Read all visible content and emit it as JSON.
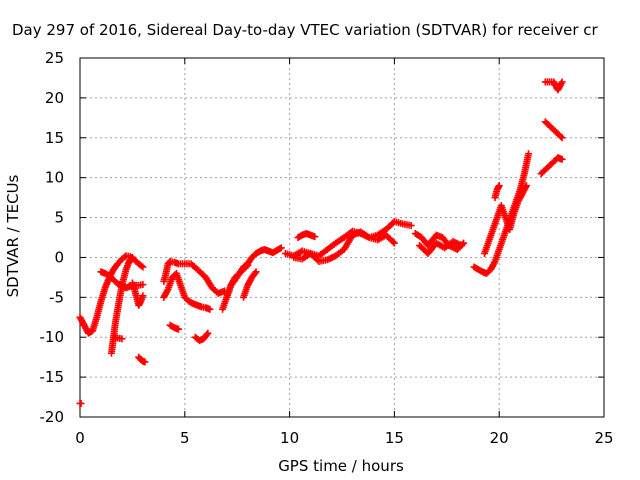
{
  "chart_data": {
    "type": "scatter",
    "title": "Day 297 of 2016, Sidereal Day-to-day VTEC variation (SDTVAR) for receiver cr",
    "xlabel": "GPS time / hours",
    "ylabel": "SDTVAR / TECUs",
    "xlim": [
      0,
      25
    ],
    "ylim": [
      -20,
      25
    ],
    "xticks": [
      0,
      5,
      10,
      15,
      20,
      25
    ],
    "yticks": [
      -20,
      -15,
      -10,
      -5,
      0,
      5,
      10,
      15,
      20,
      25
    ],
    "xtick_labels": [
      "0",
      "5",
      "10",
      "15",
      "20",
      "25"
    ],
    "ytick_labels": [
      "-20",
      "-15",
      "-10",
      "-5",
      "0",
      "5",
      "10",
      "15",
      "20",
      "25"
    ],
    "grid": true,
    "marker": "+",
    "color": "#ff0000",
    "segments": [
      {
        "x": [
          0,
          0.05
        ],
        "y": [
          -18.3,
          -18.3
        ]
      },
      {
        "x": [
          0,
          0.2,
          0.4,
          0.6,
          0.8,
          1.0,
          1.2,
          1.4,
          1.6,
          1.8,
          2.0,
          2.2,
          2.4,
          2.6,
          2.8,
          3.0
        ],
        "y": [
          -7.5,
          -8.5,
          -9.5,
          -9.2,
          -7.5,
          -5.5,
          -3.8,
          -2.5,
          -1.5,
          -0.8,
          -0.2,
          0.2,
          0.1,
          -0.3,
          -0.8,
          -1.2
        ]
      },
      {
        "x": [
          1.0,
          1.2,
          1.4,
          1.6,
          1.8,
          2.0,
          2.2,
          2.4,
          2.6,
          2.8,
          3.0
        ],
        "y": [
          -1.8,
          -2.0,
          -2.3,
          -2.8,
          -3.3,
          -3.6,
          -3.8,
          -3.6,
          -3.5,
          -3.5,
          -3.4
        ]
      },
      {
        "x": [
          1.5,
          1.6,
          1.7,
          1.8,
          1.9,
          2.0,
          2.1,
          2.2,
          2.3,
          2.4,
          2.5
        ],
        "y": [
          -12.0,
          -10.0,
          -8.0,
          -6.5,
          -5.0,
          -3.5,
          -2.5,
          -1.5,
          -0.8,
          -0.3,
          0.0
        ]
      },
      {
        "x": [
          1.6,
          1.8,
          2.0
        ],
        "y": [
          -10.0,
          -10.1,
          -10.2
        ]
      },
      {
        "x": [
          2.5,
          2.6,
          2.7,
          2.8,
          2.9,
          3.0
        ],
        "y": [
          -3.2,
          -4.0,
          -5.0,
          -6.0,
          -5.5,
          -4.8
        ]
      },
      {
        "x": [
          2.8,
          2.9,
          3.0,
          3.1
        ],
        "y": [
          -12.5,
          -12.8,
          -13.0,
          -13.1
        ]
      },
      {
        "x": [
          4.0,
          4.1,
          4.2,
          4.3,
          4.5,
          4.7,
          5.0,
          5.3,
          5.6,
          6.0,
          6.3,
          6.6,
          6.9
        ],
        "y": [
          -3.0,
          -2.0,
          -0.8,
          -0.5,
          -0.6,
          -0.8,
          -0.8,
          -0.8,
          -1.5,
          -2.5,
          -3.8,
          -4.5,
          -4.2
        ]
      },
      {
        "x": [
          4.0,
          4.2,
          4.4,
          4.6,
          4.8,
          5.0,
          5.2,
          5.4,
          5.6,
          5.8,
          6.0,
          6.2
        ],
        "y": [
          -5.0,
          -4.0,
          -2.5,
          -2.0,
          -3.5,
          -5.0,
          -5.5,
          -5.8,
          -6.0,
          -6.2,
          -6.3,
          -6.5
        ]
      },
      {
        "x": [
          4.3,
          4.5,
          4.7
        ],
        "y": [
          -8.5,
          -8.8,
          -9.0
        ]
      },
      {
        "x": [
          5.5,
          5.7,
          5.9,
          6.1
        ],
        "y": [
          -10.0,
          -10.4,
          -10.2,
          -9.5
        ]
      },
      {
        "x": [
          6.8,
          7.0,
          7.2,
          7.4,
          7.6,
          7.8,
          8.0
        ],
        "y": [
          -6.5,
          -5.0,
          -3.5,
          -2.5,
          -2.0,
          -1.5,
          -1.0
        ]
      },
      {
        "x": [
          7.0,
          7.2,
          7.4,
          7.6,
          7.8,
          8.0,
          8.2,
          8.4,
          8.6,
          8.8,
          9.0,
          9.2,
          9.4,
          9.6
        ],
        "y": [
          -5.0,
          -3.5,
          -2.8,
          -2.0,
          -1.2,
          -0.8,
          0.0,
          0.5,
          0.8,
          1.0,
          0.8,
          0.6,
          0.9,
          1.2
        ]
      },
      {
        "x": [
          7.8,
          8.0,
          8.2,
          8.4
        ],
        "y": [
          -5.0,
          -3.5,
          -2.5,
          -1.8
        ]
      },
      {
        "x": [
          9.8,
          10.2,
          10.6,
          11.0,
          11.4,
          11.8,
          12.2,
          12.6,
          13.0,
          13.4,
          13.8,
          14.2,
          14.6,
          15.0,
          15.4,
          15.8
        ],
        "y": [
          0.5,
          0.2,
          0.8,
          0.5,
          0.2,
          1.0,
          1.8,
          2.5,
          3.3,
          3.0,
          2.5,
          2.8,
          3.5,
          4.5,
          4.2,
          4.0
        ]
      },
      {
        "x": [
          10.2,
          10.6,
          11.0,
          11.4,
          11.8,
          12.2,
          12.6,
          13.0,
          13.4,
          13.8,
          14.2,
          14.6,
          15.0
        ],
        "y": [
          0.0,
          -0.2,
          0.5,
          -0.5,
          -0.3,
          0.2,
          1.0,
          2.8,
          3.2,
          2.5,
          2.2,
          2.8,
          1.8
        ]
      },
      {
        "x": [
          10.4,
          10.6,
          10.8,
          11.0,
          11.2
        ],
        "y": [
          2.5,
          2.8,
          3.0,
          2.8,
          2.6
        ]
      },
      {
        "x": [
          16.0,
          16.3,
          16.6,
          17.0,
          17.3,
          17.6,
          18.0,
          18.3
        ],
        "y": [
          3.0,
          2.5,
          1.5,
          2.8,
          2.5,
          1.5,
          1.0,
          1.8
        ]
      },
      {
        "x": [
          16.2,
          16.6,
          17.0,
          17.4,
          17.8,
          18.2
        ],
        "y": [
          1.5,
          0.5,
          1.8,
          1.2,
          2.0,
          1.5
        ]
      },
      {
        "x": [
          18.8,
          19.0,
          19.2,
          19.4,
          19.6,
          19.8,
          20.0,
          20.2,
          20.4,
          20.6,
          20.8,
          21.0,
          21.2,
          21.4
        ],
        "y": [
          -1.2,
          -1.5,
          -1.8,
          -2.0,
          -1.5,
          -0.5,
          1.0,
          2.5,
          4.0,
          5.5,
          7.0,
          8.5,
          10.5,
          13.0
        ]
      },
      {
        "x": [
          19.3,
          19.5,
          19.7,
          19.9,
          20.1,
          20.3,
          20.5,
          20.7,
          20.9,
          21.1,
          21.3
        ],
        "y": [
          0.5,
          2.0,
          3.5,
          5.0,
          6.5,
          5.0,
          3.5,
          5.5,
          7.0,
          8.0,
          9.0
        ]
      },
      {
        "x": [
          19.8,
          19.9,
          20.0
        ],
        "y": [
          7.5,
          8.5,
          9.0
        ]
      },
      {
        "x": [
          22.2,
          22.4,
          22.6,
          22.8,
          23.0
        ],
        "y": [
          22.0,
          22.0,
          22.0,
          21.0,
          22.0
        ]
      },
      {
        "x": [
          22.2,
          22.4,
          22.6,
          22.8,
          23.0
        ],
        "y": [
          17.0,
          16.5,
          16.0,
          15.5,
          15.0
        ]
      },
      {
        "x": [
          22.0,
          22.2,
          22.4,
          22.6,
          22.8,
          23.0
        ],
        "y": [
          10.5,
          11.0,
          11.5,
          12.0,
          12.5,
          12.3
        ]
      }
    ]
  }
}
